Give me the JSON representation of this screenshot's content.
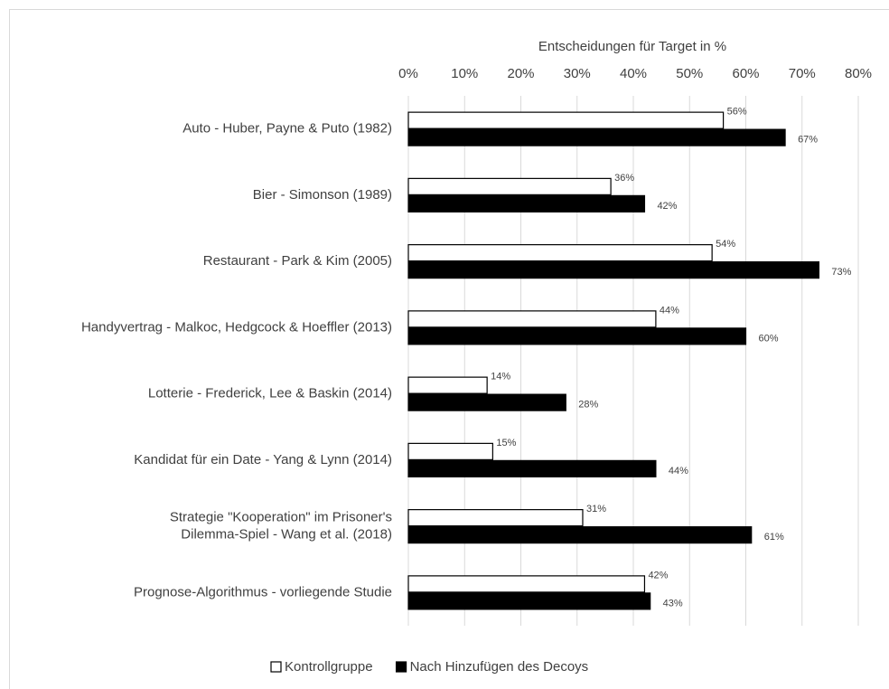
{
  "chart_data": {
    "type": "bar",
    "orientation": "horizontal",
    "x_label": "Entscheidungen für Target in %",
    "categories": [
      "Auto - Huber, Payne & Puto (1982)",
      "Bier - Simonson (1989)",
      "Restaurant - Park & Kim (2005)",
      "Handyvertrag - Malkoc, Hedgcock & Hoeffler (2013)",
      "Lotterie - Frederick, Lee & Baskin (2014)",
      "Kandidat für ein Date - Yang & Lynn (2014)",
      "Strategie \"Kooperation\" im Prisoner's\nDilemma-Spiel - Wang et al. (2018)",
      "Prognose-Algorithmus - vorliegende Studie"
    ],
    "series": [
      {
        "name": "Kontrollgruppe",
        "color": "#ffffff",
        "values": [
          56,
          36,
          54,
          44,
          14,
          15,
          31,
          42
        ],
        "value_labels": [
          "56%",
          "36%",
          "54%",
          "44%",
          "14%",
          "15%",
          "31%",
          "42%"
        ]
      },
      {
        "name": "Nach Hinzufügen des Decoys",
        "color": "#000000",
        "values": [
          67,
          42,
          73,
          60,
          28,
          44,
          61,
          43
        ],
        "value_labels": [
          "67%",
          "42%",
          "73%",
          "60%",
          "28%",
          "44%",
          "61%",
          "43%"
        ]
      }
    ],
    "xlim": [
      0,
      80
    ],
    "xticks": [
      {
        "value": 0,
        "label": "0%"
      },
      {
        "value": 10,
        "label": "10%"
      },
      {
        "value": 20,
        "label": "20%"
      },
      {
        "value": 30,
        "label": "30%"
      },
      {
        "value": 40,
        "label": "40%"
      },
      {
        "value": 50,
        "label": "50%"
      },
      {
        "value": 60,
        "label": "60%"
      },
      {
        "value": 70,
        "label": "70%"
      },
      {
        "value": 80,
        "label": "80%"
      }
    ],
    "grid": true,
    "legend": "bottom"
  }
}
